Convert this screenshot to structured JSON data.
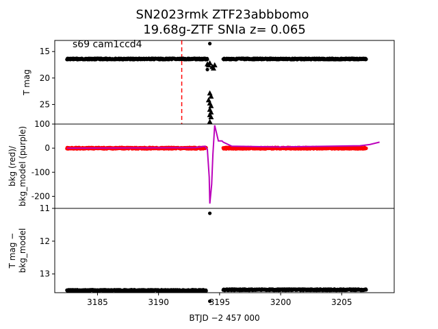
{
  "title_line1": "SN2023rmk  ZTF23abbbomo",
  "title_line2": "19.68g-ZTF SNIa z= 0.065",
  "xlabel": "BTJD −2 457 000",
  "annotation": "s69 cam1ccd4",
  "chart_data": [
    {
      "type": "scatter",
      "ylabel": "T mag",
      "ylim": [
        28.7,
        12.9
      ],
      "yticks": [
        15,
        20,
        25
      ],
      "xlim": [
        3181.5,
        3209.3
      ],
      "xticks": [
        3185,
        3190,
        3195,
        3200,
        3205
      ],
      "vline": {
        "x": 3191.9,
        "color": "#ff0000",
        "style": "dashed"
      },
      "baseline_segments": [
        {
          "x_start": 3182.5,
          "x_end": 3194.0,
          "y": 16.4
        },
        {
          "x_start": 3195.3,
          "x_end": 3207.0,
          "y": 16.4
        }
      ],
      "outlier_points": [
        {
          "x": 3194.2,
          "y": 13.5
        },
        {
          "x": 3194.0,
          "y": 18.4
        }
      ],
      "triangle_markers": {
        "x": [
          3194.0,
          3194.1,
          3194.2,
          3194.4,
          3194.5,
          3194.6,
          3194.2,
          3194.3,
          3194.1,
          3194.2,
          3194.3,
          3194.2,
          3194.3,
          3194.2,
          3194.3,
          3194.2
        ],
        "y": [
          17.4,
          17.6,
          17.2,
          17.9,
          18.2,
          17.6,
          22.9,
          23.5,
          24.2,
          24.8,
          25.3,
          26.0,
          26.5,
          27.0,
          27.4,
          28.3
        ]
      },
      "color": "#000000"
    },
    {
      "type": "line",
      "ylabel": "bkg (red)/\nbkg_model (purple)",
      "ylim": [
        -250,
        100
      ],
      "yticks": [
        100,
        0,
        -100,
        -200
      ],
      "xlim": [
        3181.5,
        3209.3
      ],
      "series": [
        {
          "color": "#ff0000",
          "marker": "dot",
          "segments": [
            {
              "x_start": 3182.5,
              "x_end": 3193.9,
              "y": 0
            },
            {
              "x_start": 3195.3,
              "x_end": 3207.0,
              "y": 0
            }
          ]
        },
        {
          "color": "#bb00bb",
          "marker": "line",
          "x": [
            3182.5,
            3193.0,
            3193.8,
            3194.0,
            3194.15,
            3194.2,
            3194.35,
            3194.45,
            3194.6,
            3194.9,
            3195.2,
            3195.3,
            3196.0,
            3200.0,
            3206.5,
            3207.3,
            3208.1
          ],
          "y": [
            0,
            2,
            8,
            -5,
            -120,
            -230,
            -150,
            -25,
            95,
            30,
            30,
            25,
            8,
            5,
            10,
            15,
            25
          ]
        }
      ]
    },
    {
      "type": "scatter",
      "ylabel": "T mag −\nbkg_model",
      "ylim": [
        13.57,
        11.0
      ],
      "yticks": [
        11,
        12,
        13
      ],
      "xlim": [
        3181.5,
        3209.3
      ],
      "baseline_segments": [
        {
          "x_start": 3182.5,
          "x_end": 3193.9,
          "y": 13.5
        },
        {
          "x_start": 3195.3,
          "x_end": 3207.0,
          "y": 13.48
        }
      ],
      "outlier_points": [
        {
          "x": 3194.2,
          "y": 11.15
        },
        {
          "x": 3194.2,
          "y": 13.83
        }
      ],
      "color": "#000000"
    }
  ]
}
